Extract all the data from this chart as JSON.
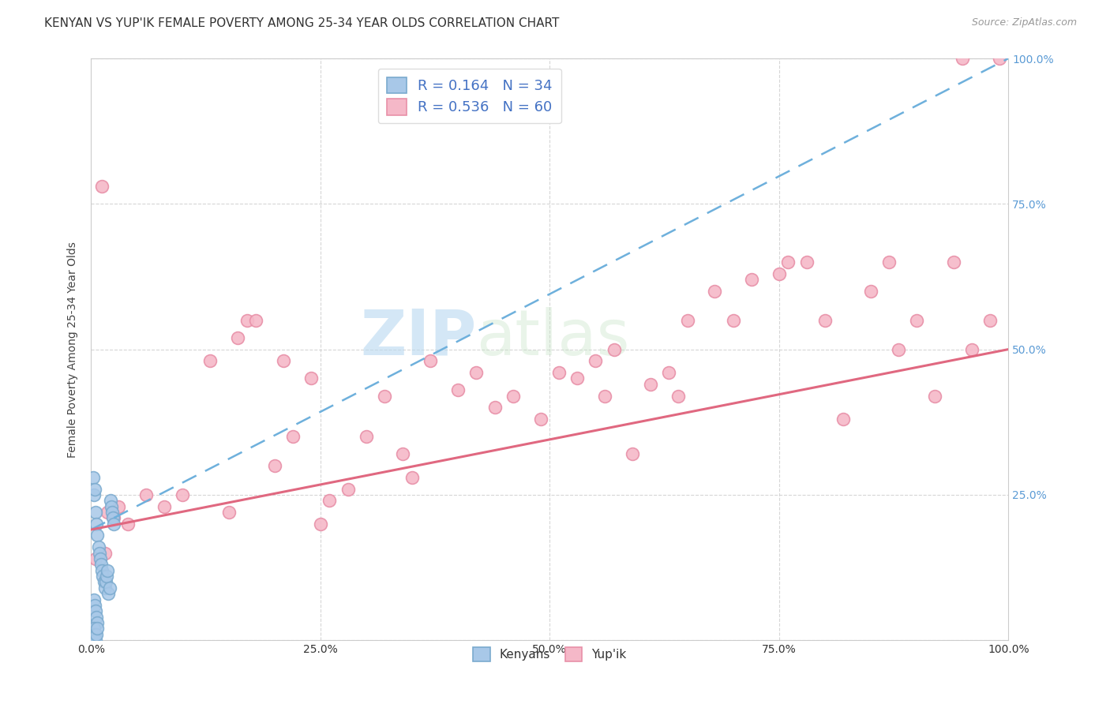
{
  "title": "KENYAN VS YUP'IK FEMALE POVERTY AMONG 25-34 YEAR OLDS CORRELATION CHART",
  "source": "Source: ZipAtlas.com",
  "ylabel": "Female Poverty Among 25-34 Year Olds",
  "watermark_zip": "ZIP",
  "watermark_atlas": "atlas",
  "kenyan_R": 0.164,
  "kenyan_N": 34,
  "yupik_R": 0.536,
  "yupik_N": 60,
  "kenyan_color": "#A8C8E8",
  "kenyan_edge": "#7AAACE",
  "yupik_color": "#F5B8C8",
  "yupik_edge": "#E890A8",
  "trend_kenyan_color": "#6EB0DC",
  "trend_yupik_color": "#E06880",
  "background_color": "#ffffff",
  "kenyan_x": [
    0.002,
    0.003,
    0.004,
    0.005,
    0.006,
    0.007,
    0.008,
    0.009,
    0.01,
    0.011,
    0.012,
    0.013,
    0.014,
    0.015,
    0.016,
    0.017,
    0.018,
    0.019,
    0.02,
    0.021,
    0.022,
    0.023,
    0.024,
    0.025,
    0.003,
    0.004,
    0.005,
    0.006,
    0.007,
    0.003,
    0.004,
    0.005,
    0.006,
    0.007
  ],
  "kenyan_y": [
    0.28,
    0.25,
    0.26,
    0.22,
    0.2,
    0.18,
    0.16,
    0.15,
    0.14,
    0.13,
    0.12,
    0.11,
    0.1,
    0.09,
    0.1,
    0.11,
    0.12,
    0.08,
    0.09,
    0.24,
    0.23,
    0.22,
    0.21,
    0.2,
    0.07,
    0.06,
    0.05,
    0.04,
    0.03,
    0.02,
    0.01,
    0.0,
    0.01,
    0.02
  ],
  "yupik_x": [
    0.005,
    0.018,
    0.03,
    0.025,
    0.04,
    0.012,
    0.06,
    0.08,
    0.1,
    0.15,
    0.13,
    0.16,
    0.2,
    0.21,
    0.22,
    0.25,
    0.26,
    0.28,
    0.3,
    0.32,
    0.35,
    0.37,
    0.4,
    0.42,
    0.44,
    0.46,
    0.49,
    0.51,
    0.53,
    0.55,
    0.57,
    0.59,
    0.61,
    0.63,
    0.65,
    0.68,
    0.7,
    0.72,
    0.75,
    0.78,
    0.8,
    0.82,
    0.85,
    0.87,
    0.9,
    0.92,
    0.94,
    0.96,
    0.98,
    0.99,
    0.015,
    0.17,
    0.24,
    0.18,
    0.34,
    0.56,
    0.64,
    0.76,
    0.88,
    0.95
  ],
  "yupik_y": [
    0.14,
    0.22,
    0.23,
    0.21,
    0.2,
    0.78,
    0.25,
    0.23,
    0.25,
    0.22,
    0.48,
    0.52,
    0.3,
    0.48,
    0.35,
    0.2,
    0.24,
    0.26,
    0.35,
    0.42,
    0.28,
    0.48,
    0.43,
    0.46,
    0.4,
    0.42,
    0.38,
    0.46,
    0.45,
    0.48,
    0.5,
    0.32,
    0.44,
    0.46,
    0.55,
    0.6,
    0.55,
    0.62,
    0.63,
    0.65,
    0.55,
    0.38,
    0.6,
    0.65,
    0.55,
    0.42,
    0.65,
    0.5,
    0.55,
    1.0,
    0.15,
    0.55,
    0.45,
    0.55,
    0.32,
    0.42,
    0.42,
    0.65,
    0.5,
    1.0
  ],
  "kenyan_trend_x0": 0.0,
  "kenyan_trend_y0": 0.19,
  "kenyan_trend_x1": 1.0,
  "kenyan_trend_y1": 1.0,
  "yupik_trend_x0": 0.0,
  "yupik_trend_y0": 0.19,
  "yupik_trend_x1": 1.0,
  "yupik_trend_y1": 0.5,
  "xlim": [
    0.0,
    1.0
  ],
  "ylim": [
    0.0,
    1.0
  ],
  "xticks": [
    0.0,
    0.25,
    0.5,
    0.75,
    1.0
  ],
  "yticks": [
    0.0,
    0.25,
    0.5,
    0.75,
    1.0
  ],
  "xtick_labels": [
    "0.0%",
    "25.0%",
    "50.0%",
    "75.0%",
    "100.0%"
  ],
  "right_ytick_labels": [
    "",
    "25.0%",
    "50.0%",
    "75.0%",
    "100.0%"
  ],
  "marker_size": 130,
  "title_fontsize": 11,
  "axis_label_fontsize": 10,
  "tick_fontsize": 10,
  "legend_fontsize": 13
}
